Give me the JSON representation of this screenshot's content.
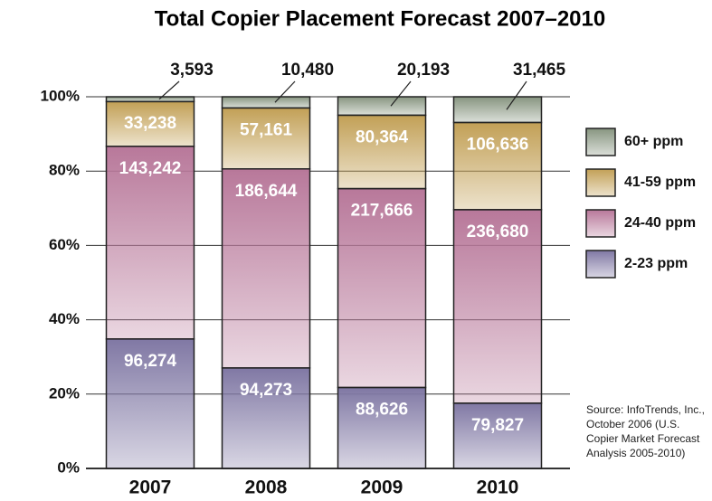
{
  "chart_data": {
    "type": "stacked_bar",
    "stack": "percent",
    "title": "Total Copier Placement Forecast 2007–2010",
    "categories": [
      "2007",
      "2008",
      "2009",
      "2010"
    ],
    "series": [
      {
        "name": "2-23 ppm",
        "color": "#8078a4",
        "values": [
          96274,
          94273,
          88626,
          79827
        ],
        "value_labels": [
          "96,274",
          "94,273",
          "88,626",
          "79,827"
        ]
      },
      {
        "name": "24-40 ppm",
        "color": "#b8789a",
        "values": [
          143242,
          186644,
          217666,
          236680
        ],
        "value_labels": [
          "143,242",
          "186,644",
          "217,666",
          "236,680"
        ]
      },
      {
        "name": "41-59 ppm",
        "color": "#c2a056",
        "values": [
          33238,
          57161,
          80364,
          106636
        ],
        "value_labels": [
          "33,238",
          "57,161",
          "80,364",
          "106,636"
        ]
      },
      {
        "name": "60+ ppm",
        "color": "#879580",
        "values": [
          3593,
          10480,
          20193,
          31465
        ],
        "value_labels": [
          "3,593",
          "10,480",
          "20,193",
          "31,465"
        ],
        "label_position": "outside"
      }
    ],
    "ylim": [
      0,
      100
    ],
    "yticks": [
      {
        "value": 0,
        "label": "0%"
      },
      {
        "value": 20,
        "label": "20%"
      },
      {
        "value": 40,
        "label": "40%"
      },
      {
        "value": 60,
        "label": "60%"
      },
      {
        "value": 80,
        "label": "80%"
      },
      {
        "value": 100,
        "label": "100%"
      }
    ],
    "grid": true,
    "legend": "right",
    "source": [
      "Source: InfoTrends, Inc.,",
      "October 2006 (U.S.",
      "Copier Market Forecast",
      "Analysis 2005-2010)"
    ]
  }
}
